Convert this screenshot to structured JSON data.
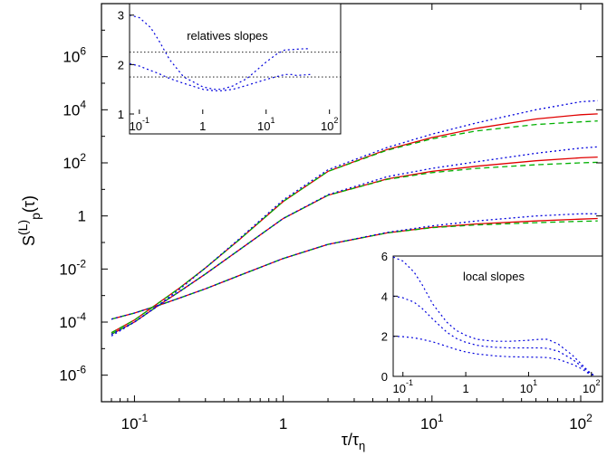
{
  "chart_data": [
    {
      "panel": "main",
      "type": "line",
      "xscale": "log",
      "yscale": "log",
      "xlim": [
        0.06,
        140
      ],
      "ylim": [
        1e-07,
        100000000.0
      ],
      "xlabel_base": "τ/τ",
      "xlabel_sub": "η",
      "ylabel_base": "S",
      "ylabel_sup": "(L)",
      "ylabel_sub": "p",
      "ylabel_tail": "(τ)",
      "xticks": [
        {
          "value": 0.1,
          "base": "10",
          "exp": "-1"
        },
        {
          "value": 1,
          "base": "1",
          "exp": ""
        },
        {
          "value": 10,
          "base": "10",
          "exp": "1"
        },
        {
          "value": 100,
          "base": "10",
          "exp": "2"
        }
      ],
      "yticks": [
        {
          "value": 1e-06,
          "base": "10",
          "exp": "-6"
        },
        {
          "value": 0.0001,
          "base": "10",
          "exp": "-4"
        },
        {
          "value": 0.01,
          "base": "10",
          "exp": "-2"
        },
        {
          "value": 1,
          "base": "1",
          "exp": ""
        },
        {
          "value": 100.0,
          "base": "10",
          "exp": "2"
        },
        {
          "value": 10000.0,
          "base": "10",
          "exp": "4"
        },
        {
          "value": 1000000.0,
          "base": "10",
          "exp": "6"
        }
      ],
      "series": [
        {
          "group": "low",
          "style": "solid",
          "color": "#e00000",
          "x": [
            0.07,
            0.1,
            0.15,
            0.2,
            0.3,
            0.5,
            1,
            2,
            5,
            10,
            20,
            50,
            100,
            130
          ],
          "y": [
            0.00013,
            0.00022,
            0.00045,
            0.0008,
            0.0018,
            0.0055,
            0.025,
            0.085,
            0.23,
            0.37,
            0.5,
            0.65,
            0.76,
            0.8
          ]
        },
        {
          "group": "low",
          "style": "dashed",
          "color": "#00b000",
          "x": [
            0.07,
            0.1,
            0.15,
            0.2,
            0.3,
            0.5,
            1,
            2,
            5,
            10,
            20,
            50,
            100,
            130
          ],
          "y": [
            0.00013,
            0.00022,
            0.00045,
            0.0008,
            0.0018,
            0.0055,
            0.025,
            0.085,
            0.23,
            0.36,
            0.46,
            0.56,
            0.63,
            0.65
          ]
        },
        {
          "group": "low",
          "style": "dotted",
          "color": "#0000dd",
          "x": [
            0.07,
            0.1,
            0.15,
            0.2,
            0.3,
            0.5,
            1,
            2,
            5,
            10,
            20,
            50,
            100,
            130
          ],
          "y": [
            0.00013,
            0.00022,
            0.00045,
            0.0008,
            0.0018,
            0.0055,
            0.025,
            0.085,
            0.24,
            0.42,
            0.65,
            1.0,
            1.2,
            1.2
          ]
        },
        {
          "group": "mid",
          "style": "solid",
          "color": "#e00000",
          "x": [
            0.07,
            0.1,
            0.15,
            0.2,
            0.3,
            0.5,
            1,
            2,
            5,
            10,
            20,
            50,
            100,
            130
          ],
          "y": [
            3.5e-05,
            0.0001,
            0.00048,
            0.0014,
            0.0065,
            0.05,
            0.8,
            6,
            25,
            48,
            75,
            120,
            155,
            165
          ]
        },
        {
          "group": "mid",
          "style": "dashed",
          "color": "#00b000",
          "x": [
            0.07,
            0.1,
            0.15,
            0.2,
            0.3,
            0.5,
            1,
            2,
            5,
            10,
            20,
            50,
            100,
            130
          ],
          "y": [
            3.5e-05,
            0.0001,
            0.00048,
            0.0014,
            0.0065,
            0.05,
            0.8,
            6,
            24,
            43,
            62,
            85,
            100,
            105
          ]
        },
        {
          "group": "mid",
          "style": "dotted",
          "color": "#0000dd",
          "x": [
            0.07,
            0.1,
            0.15,
            0.2,
            0.3,
            0.5,
            1,
            2,
            5,
            10,
            20,
            50,
            100,
            130
          ],
          "y": [
            3.5e-05,
            0.0001,
            0.00048,
            0.0014,
            0.0065,
            0.05,
            0.8,
            6.3,
            30,
            62,
            110,
            230,
            360,
            400
          ]
        },
        {
          "group": "high",
          "style": "solid",
          "color": "#e00000",
          "x": [
            0.07,
            0.1,
            0.15,
            0.2,
            0.3,
            0.5,
            1,
            2,
            5,
            10,
            20,
            50,
            100,
            130
          ],
          "y": [
            4e-05,
            0.00012,
            0.0006,
            0.0019,
            0.011,
            0.12,
            3.5,
            48,
            320,
            900,
            2000,
            4500,
            6500,
            7000
          ]
        },
        {
          "group": "high",
          "style": "dashed",
          "color": "#00b000",
          "x": [
            0.07,
            0.1,
            0.15,
            0.2,
            0.3,
            0.5,
            1,
            2,
            5,
            10,
            20,
            50,
            100,
            130
          ],
          "y": [
            4e-05,
            0.00012,
            0.0006,
            0.0019,
            0.011,
            0.12,
            3.5,
            48,
            300,
            800,
            1600,
            2800,
            3500,
            3800
          ]
        },
        {
          "group": "high",
          "style": "dotted",
          "color": "#0000dd",
          "x": [
            0.07,
            0.1,
            0.15,
            0.2,
            0.3,
            0.5,
            1,
            2,
            5,
            10,
            20,
            50,
            100,
            130
          ],
          "y": [
            3e-05,
            0.0001,
            0.0005,
            0.0017,
            0.011,
            0.13,
            4,
            55,
            380,
            1200,
            3200,
            10000,
            20000,
            22000
          ]
        }
      ]
    },
    {
      "panel": "inset-top",
      "type": "line",
      "title": "relatives slopes",
      "xscale": "log",
      "xlim": [
        0.07,
        150
      ],
      "ylim": [
        1,
        3.05
      ],
      "xticks": [
        {
          "value": 0.1,
          "base": "10",
          "exp": "-1"
        },
        {
          "value": 1,
          "base": "1",
          "exp": ""
        },
        {
          "value": 10,
          "base": "10",
          "exp": "1"
        },
        {
          "value": 100,
          "base": "10",
          "exp": "2"
        }
      ],
      "yticks": [
        {
          "value": 1,
          "label": "1"
        },
        {
          "value": 2,
          "label": "2"
        },
        {
          "value": 3,
          "label": "3"
        }
      ],
      "reference_lines": [
        2.25,
        1.75
      ],
      "series": [
        {
          "style": "dotted",
          "color": "#0000dd",
          "x": [
            0.07,
            0.1,
            0.15,
            0.2,
            0.3,
            0.5,
            1,
            1.5,
            2,
            3,
            5,
            10,
            15,
            20,
            25,
            30,
            40,
            50
          ],
          "y": [
            3.0,
            2.95,
            2.75,
            2.5,
            2.1,
            1.75,
            1.55,
            1.5,
            1.5,
            1.57,
            1.72,
            2.05,
            2.22,
            2.3,
            2.3,
            2.31,
            2.32,
            2.32
          ]
        },
        {
          "style": "dotted",
          "color": "#0000dd",
          "x": [
            0.07,
            0.1,
            0.15,
            0.2,
            0.3,
            0.5,
            1,
            1.5,
            2,
            3,
            5,
            10,
            15,
            20,
            25,
            30,
            40,
            50
          ],
          "y": [
            2.02,
            1.97,
            1.88,
            1.82,
            1.72,
            1.62,
            1.5,
            1.47,
            1.47,
            1.5,
            1.58,
            1.7,
            1.76,
            1.8,
            1.8,
            1.78,
            1.79,
            1.8
          ]
        }
      ]
    },
    {
      "panel": "inset-bottom",
      "type": "line",
      "title": "local slopes",
      "xscale": "log",
      "xlim": [
        0.07,
        150
      ],
      "ylim": [
        0,
        6
      ],
      "xticks": [
        {
          "value": 0.1,
          "base": "10",
          "exp": "-1"
        },
        {
          "value": 1,
          "base": "1",
          "exp": ""
        },
        {
          "value": 10,
          "base": "10",
          "exp": "1"
        },
        {
          "value": 100,
          "base": "10",
          "exp": "2"
        }
      ],
      "yticks": [
        {
          "value": 0,
          "label": "0"
        },
        {
          "value": 2,
          "label": "2"
        },
        {
          "value": 4,
          "label": "4"
        },
        {
          "value": 6,
          "label": "6"
        }
      ],
      "series": [
        {
          "style": "dotted",
          "color": "#0000dd",
          "x": [
            0.07,
            0.1,
            0.15,
            0.2,
            0.3,
            0.5,
            0.7,
            1,
            1.5,
            2,
            3,
            5,
            10,
            15,
            20,
            30,
            50,
            70,
            90,
            110
          ],
          "y": [
            5.95,
            5.75,
            5.2,
            4.6,
            3.6,
            2.7,
            2.3,
            2.05,
            1.85,
            1.8,
            1.75,
            1.75,
            1.8,
            1.85,
            1.85,
            1.6,
            1.05,
            0.6,
            0.25,
            0.05
          ]
        },
        {
          "style": "dotted",
          "color": "#0000dd",
          "x": [
            0.07,
            0.1,
            0.15,
            0.2,
            0.3,
            0.5,
            0.7,
            1,
            1.5,
            2,
            3,
            5,
            10,
            15,
            20,
            30,
            50,
            70,
            90,
            110
          ],
          "y": [
            4.0,
            3.92,
            3.7,
            3.4,
            2.85,
            2.2,
            1.9,
            1.7,
            1.55,
            1.5,
            1.45,
            1.42,
            1.42,
            1.42,
            1.4,
            1.25,
            0.85,
            0.5,
            0.2,
            0.05
          ]
        },
        {
          "style": "dotted",
          "color": "#0000dd",
          "x": [
            0.07,
            0.1,
            0.15,
            0.2,
            0.3,
            0.5,
            0.7,
            1,
            1.5,
            2,
            3,
            5,
            10,
            15,
            20,
            30,
            50,
            70,
            90,
            110
          ],
          "y": [
            2.0,
            1.98,
            1.92,
            1.85,
            1.72,
            1.5,
            1.35,
            1.22,
            1.12,
            1.08,
            1.02,
            0.98,
            0.96,
            0.95,
            0.94,
            0.85,
            0.6,
            0.38,
            0.15,
            0.05
          ]
        }
      ]
    }
  ]
}
